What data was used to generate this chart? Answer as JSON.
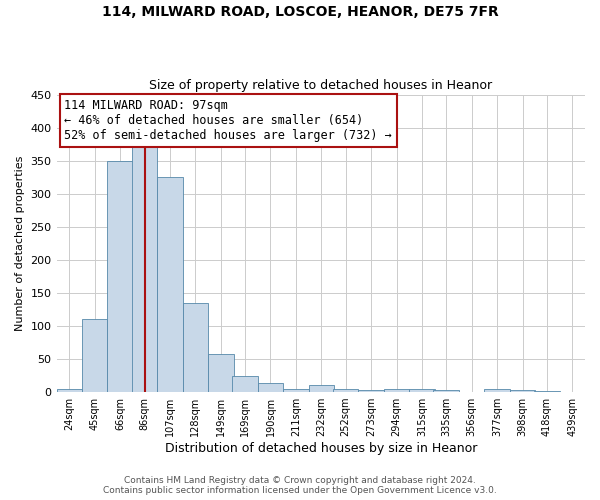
{
  "title": "114, MILWARD ROAD, LOSCOE, HEANOR, DE75 7FR",
  "subtitle": "Size of property relative to detached houses in Heanor",
  "xlabel": "Distribution of detached houses by size in Heanor",
  "ylabel": "Number of detached properties",
  "footer_line1": "Contains HM Land Registry data © Crown copyright and database right 2024.",
  "footer_line2": "Contains public sector information licensed under the Open Government Licence v3.0.",
  "bin_labels": [
    "24sqm",
    "45sqm",
    "66sqm",
    "86sqm",
    "107sqm",
    "128sqm",
    "149sqm",
    "169sqm",
    "190sqm",
    "211sqm",
    "232sqm",
    "252sqm",
    "273sqm",
    "294sqm",
    "315sqm",
    "335sqm",
    "356sqm",
    "377sqm",
    "398sqm",
    "418sqm",
    "439sqm"
  ],
  "bin_edges": [
    24,
    45,
    66,
    86,
    107,
    128,
    149,
    169,
    190,
    211,
    232,
    252,
    273,
    294,
    315,
    335,
    356,
    377,
    398,
    418,
    439
  ],
  "bar_heights": [
    5,
    110,
    350,
    375,
    325,
    135,
    57,
    25,
    13,
    5,
    10,
    5,
    3,
    4,
    5,
    3,
    0,
    5,
    3,
    2
  ],
  "bar_color": "#c8d8e8",
  "bar_edge_color": "#5588aa",
  "vline_x": 97,
  "vline_color": "#aa1111",
  "annotation_title": "114 MILWARD ROAD: 97sqm",
  "annotation_line1": "← 46% of detached houses are smaller (654)",
  "annotation_line2": "52% of semi-detached houses are larger (732) →",
  "annotation_box_color": "#ffffff",
  "annotation_box_edge": "#aa1111",
  "ylim": [
    0,
    450
  ],
  "yticks": [
    0,
    50,
    100,
    150,
    200,
    250,
    300,
    350,
    400,
    450
  ],
  "background_color": "#ffffff",
  "grid_color": "#cccccc",
  "title_fontsize": 10,
  "subtitle_fontsize": 9,
  "annotation_fontsize": 8.5,
  "ylabel_fontsize": 8,
  "xlabel_fontsize": 9,
  "footer_fontsize": 6.5
}
